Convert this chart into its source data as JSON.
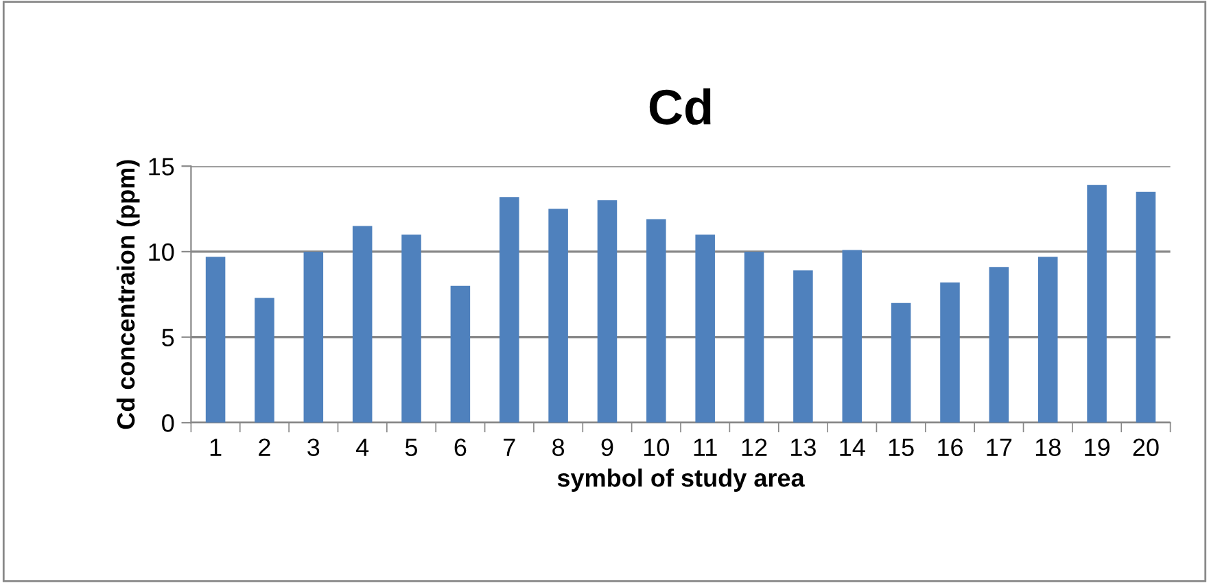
{
  "chart_data": {
    "type": "bar",
    "title": "Cd",
    "xlabel": "symbol of study area",
    "ylabel": "Cd concentraion (ppm)",
    "categories": [
      "1",
      "2",
      "3",
      "4",
      "5",
      "6",
      "7",
      "8",
      "9",
      "10",
      "11",
      "12",
      "13",
      "14",
      "15",
      "16",
      "17",
      "18",
      "19",
      "20"
    ],
    "values": [
      9.7,
      7.3,
      10,
      11.5,
      11,
      8,
      13.2,
      12.5,
      13,
      11.9,
      11,
      10,
      8.9,
      10.1,
      7,
      8.2,
      9.1,
      9.7,
      13.9,
      13.5
    ],
    "color": "#4f81bd",
    "ylim": [
      0,
      15
    ],
    "yticks": [
      0,
      5,
      10,
      15
    ],
    "grid": "y",
    "legend": false
  }
}
